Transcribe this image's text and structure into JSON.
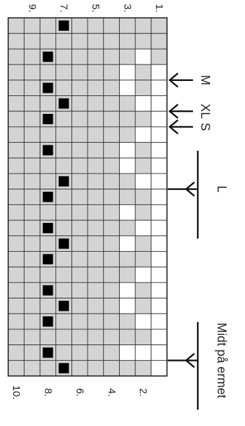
{
  "chart_data": {
    "type": "heatmap",
    "columns": 10,
    "rows": 23,
    "legend": {
      "gray": "#d4d4d4",
      "white": "#ffffff",
      "black": "#000000"
    },
    "black_cells": [
      {
        "row": 1,
        "col": 7
      },
      {
        "row": 3,
        "col": 8
      },
      {
        "row": 5,
        "col": 8
      },
      {
        "row": 6,
        "col": 7
      },
      {
        "row": 7,
        "col": 8
      },
      {
        "row": 9,
        "col": 8
      },
      {
        "row": 11,
        "col": 7
      },
      {
        "row": 12,
        "col": 8
      },
      {
        "row": 14,
        "col": 8
      },
      {
        "row": 15,
        "col": 7
      },
      {
        "row": 16,
        "col": 8
      },
      {
        "row": 18,
        "col": 8
      },
      {
        "row": 19,
        "col": 7
      },
      {
        "row": 20,
        "col": 8
      },
      {
        "row": 22,
        "col": 8
      },
      {
        "row": 23,
        "col": 7
      }
    ],
    "white_cells": [
      {
        "row": 4,
        "col": 1
      },
      {
        "row": 5,
        "col": 1
      },
      {
        "row": 6,
        "col": 1
      },
      {
        "row": 7,
        "col": 1
      },
      {
        "row": 8,
        "col": 1
      },
      {
        "row": 9,
        "col": 1
      },
      {
        "row": 10,
        "col": 1
      },
      {
        "row": 11,
        "col": 1
      },
      {
        "row": 12,
        "col": 1
      },
      {
        "row": 13,
        "col": 1
      },
      {
        "row": 14,
        "col": 1
      },
      {
        "row": 15,
        "col": 1
      },
      {
        "row": 16,
        "col": 1
      },
      {
        "row": 17,
        "col": 1
      },
      {
        "row": 18,
        "col": 1
      },
      {
        "row": 19,
        "col": 1
      },
      {
        "row": 20,
        "col": 1
      },
      {
        "row": 21,
        "col": 1
      },
      {
        "row": 22,
        "col": 1
      },
      {
        "row": 23,
        "col": 1
      },
      {
        "row": 3,
        "col": 2
      },
      {
        "row": 6,
        "col": 2
      },
      {
        "row": 8,
        "col": 2
      },
      {
        "row": 11,
        "col": 2
      },
      {
        "row": 14,
        "col": 2
      },
      {
        "row": 17,
        "col": 2
      },
      {
        "row": 20,
        "col": 2
      },
      {
        "row": 22,
        "col": 2
      },
      {
        "row": 4,
        "col": 3
      },
      {
        "row": 5,
        "col": 3
      },
      {
        "row": 9,
        "col": 3
      },
      {
        "row": 10,
        "col": 3
      },
      {
        "row": 13,
        "col": 3
      },
      {
        "row": 15,
        "col": 3
      },
      {
        "row": 18,
        "col": 3
      },
      {
        "row": 19,
        "col": 3
      },
      {
        "row": 22,
        "col": 3
      }
    ],
    "top_labels": [
      {
        "text": "9.",
        "col": 9
      },
      {
        "text": "7.",
        "col": 7
      },
      {
        "text": "5.",
        "col": 5
      },
      {
        "text": "3.",
        "col": 3
      },
      {
        "text": "1.",
        "col": 1
      }
    ],
    "bottom_labels": [
      {
        "text": "10.",
        "col": 10
      },
      {
        "text": "8.",
        "col": 8
      },
      {
        "text": "6.",
        "col": 6
      },
      {
        "text": "4.",
        "col": 4
      },
      {
        "text": "2.",
        "col": 2
      }
    ],
    "size_markers": [
      {
        "label": "M",
        "row_boundary": 4,
        "style": "arrow"
      },
      {
        "label": "XL",
        "row_boundary": 6,
        "style": "arrow"
      },
      {
        "label": "S",
        "row_boundary": 7,
        "style": "arrow"
      },
      {
        "label": "L",
        "row_boundary": 11,
        "style": "bracket"
      },
      {
        "label": "Midt på ermet",
        "row_boundary": 22,
        "style": "bracket"
      }
    ]
  }
}
